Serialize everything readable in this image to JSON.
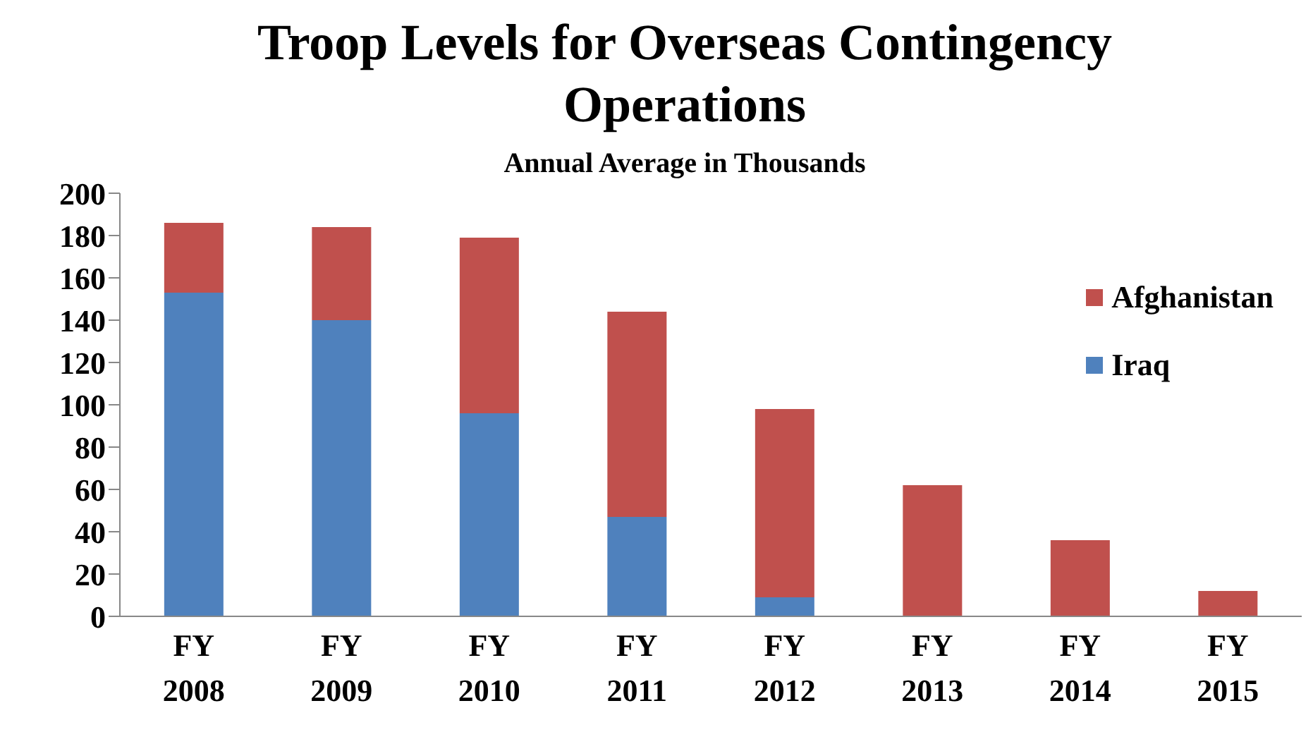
{
  "chart_data": {
    "type": "bar",
    "title": "Troop Levels for Overseas Contingency Operations",
    "subtitle": "Annual Average in Thousands",
    "categories": [
      "FY 2008",
      "FY 2009",
      "FY 2010",
      "FY 2011",
      "FY 2012",
      "FY 2013",
      "FY 2014",
      "FY 2015"
    ],
    "series": [
      {
        "name": "Iraq",
        "color": "#4f81bd",
        "values": [
          153,
          140,
          96,
          47,
          9,
          0,
          0,
          0
        ]
      },
      {
        "name": "Afghanistan",
        "color": "#c0504d",
        "values": [
          33,
          44,
          83,
          97,
          89,
          62,
          36,
          12
        ]
      }
    ],
    "stacked": true,
    "ylim": [
      0,
      200
    ],
    "yticks": [
      0,
      20,
      40,
      60,
      80,
      100,
      120,
      140,
      160,
      180,
      200
    ],
    "grid": false,
    "legend": "top right"
  }
}
